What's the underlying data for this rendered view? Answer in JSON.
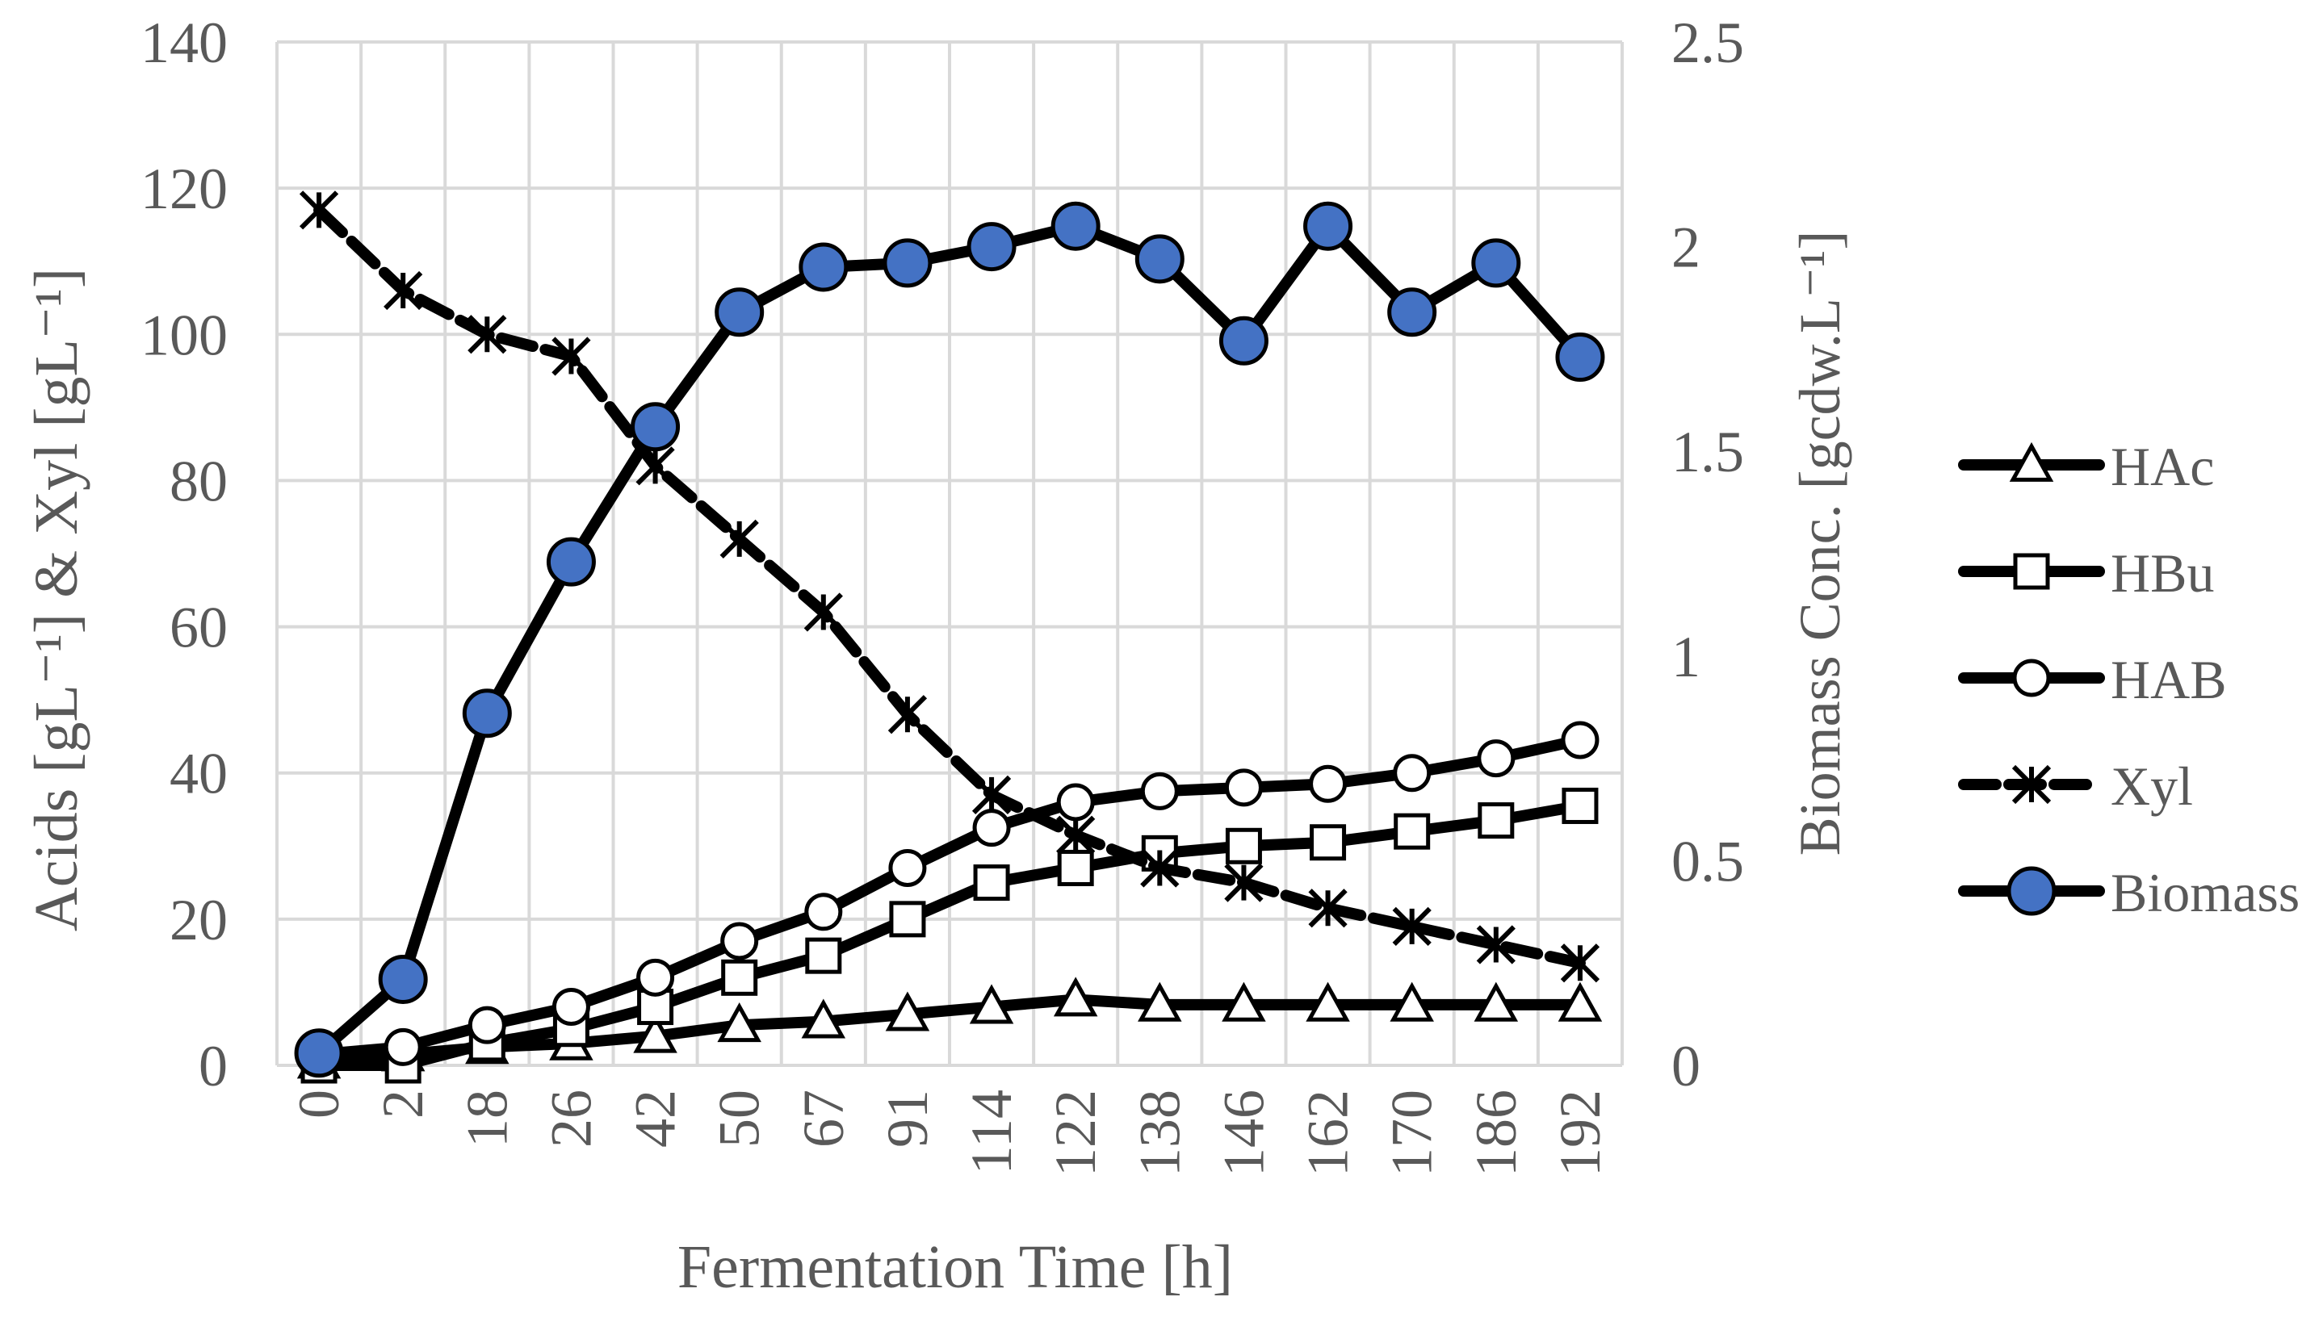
{
  "chart_data": {
    "type": "line",
    "title": "",
    "xlabel": "Fermentation Time [h]",
    "ylabel_left": "Acids [gL⁻¹] & Xyl [gL⁻¹]",
    "ylabel_right": "Biomass Conc. [gcdw.L⁻¹]",
    "categories": [
      "0",
      "2",
      "18",
      "26",
      "42",
      "50",
      "67",
      "91",
      "114",
      "122",
      "138",
      "146",
      "162",
      "170",
      "186",
      "192"
    ],
    "ylim_left": [
      0,
      140
    ],
    "yticks_left": [
      "0",
      "20",
      "40",
      "60",
      "80",
      "100",
      "120",
      "140"
    ],
    "ylim_right": [
      0,
      2.5
    ],
    "yticks_right": [
      "0",
      "0.5",
      "1",
      "1.5",
      "2",
      "2.5"
    ],
    "grid": true,
    "legend_position": "right",
    "series": [
      {
        "name": "HAc",
        "axis": "left",
        "marker": "triangle",
        "dashed": false,
        "color": "#000000",
        "fill": "#ffffff",
        "values": [
          0.5,
          1.5,
          2.5,
          3,
          4,
          5.5,
          6,
          7,
          8,
          9,
          8.3,
          8.3,
          8.3,
          8.3,
          8.3,
          8.3
        ]
      },
      {
        "name": "HBu",
        "axis": "left",
        "marker": "square",
        "dashed": false,
        "color": "#000000",
        "fill": "#ffffff",
        "values": [
          0,
          0,
          3,
          5,
          8,
          12,
          15,
          20,
          25,
          27,
          29,
          30,
          30.5,
          32,
          33.5,
          35.5
        ]
      },
      {
        "name": "HAB",
        "axis": "left",
        "marker": "circle",
        "dashed": false,
        "color": "#000000",
        "fill": "#ffffff",
        "values": [
          1.5,
          2.5,
          5.5,
          8,
          12,
          17,
          21,
          27,
          32.5,
          36,
          37.5,
          38,
          38.5,
          40,
          42,
          44.5
        ]
      },
      {
        "name": "Xyl",
        "axis": "left",
        "marker": "asterisk",
        "dashed": true,
        "color": "#000000",
        "fill": "#ffffff",
        "values": [
          117,
          106,
          100,
          97,
          82,
          72,
          62,
          48,
          37,
          31.5,
          27,
          25,
          21.5,
          19,
          16.5,
          14
        ]
      },
      {
        "name": "Biomass",
        "axis": "right",
        "marker": "circle",
        "dashed": false,
        "color": "#000000",
        "fill": "#4472C4",
        "values": [
          0.03,
          0.21,
          0.86,
          1.23,
          1.56,
          1.84,
          1.95,
          1.96,
          2.0,
          2.05,
          1.97,
          1.77,
          2.05,
          1.84,
          1.96,
          1.73
        ]
      }
    ]
  }
}
